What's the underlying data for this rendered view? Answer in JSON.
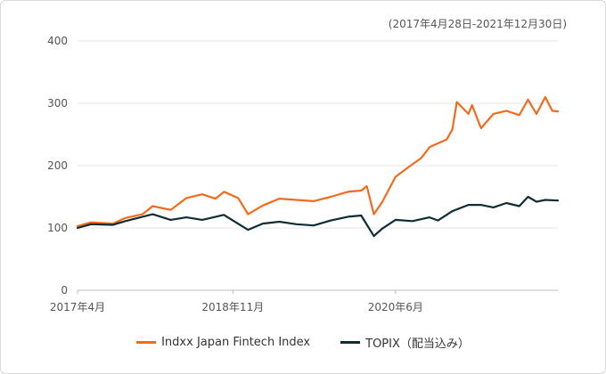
{
  "note": "(2017年4月28日-2021年12月30日)",
  "chart_data": {
    "type": "line",
    "title": "",
    "xlabel": "",
    "ylabel": "",
    "ylim": [
      0,
      400
    ],
    "yticks": [
      0,
      100,
      200,
      300,
      400
    ],
    "xlim": [
      "2017-04-28",
      "2021-12-30"
    ],
    "xticks": [
      {
        "date": "2017-04-28",
        "label": "2017年4月"
      },
      {
        "date": "2018-11-01",
        "label": "2018年11月"
      },
      {
        "date": "2020-06-01",
        "label": "2020年6月"
      }
    ],
    "grid": true,
    "legend": "bottom",
    "series": [
      {
        "name": "Indxx Japan Fintech Index",
        "color": "#f26b1d",
        "x": [
          "2017-04-28",
          "2017-06-15",
          "2017-09-01",
          "2017-10-15",
          "2017-12-15",
          "2018-01-20",
          "2018-03-25",
          "2018-05-20",
          "2018-07-15",
          "2018-08-31",
          "2018-10-01",
          "2018-11-20",
          "2018-12-25",
          "2019-02-15",
          "2019-04-15",
          "2019-06-15",
          "2019-08-15",
          "2019-10-15",
          "2019-12-15",
          "2020-01-31",
          "2020-02-20",
          "2020-03-16",
          "2020-04-15",
          "2020-06-01",
          "2020-07-15",
          "2020-08-31",
          "2020-10-01",
          "2020-11-30",
          "2020-12-20",
          "2021-01-05",
          "2021-02-15",
          "2021-02-28",
          "2021-04-01",
          "2021-05-15",
          "2021-06-30",
          "2021-08-15",
          "2021-09-15",
          "2021-10-15",
          "2021-11-15",
          "2021-12-10",
          "2021-12-30"
        ],
        "values": [
          103,
          109,
          107,
          116,
          122,
          135,
          129,
          148,
          154,
          147,
          158,
          148,
          122,
          136,
          147,
          145,
          143,
          150,
          158,
          160,
          167,
          122,
          142,
          182,
          197,
          212,
          230,
          242,
          258,
          302,
          283,
          297,
          260,
          283,
          288,
          281,
          306,
          283,
          310,
          288,
          287
        ]
      },
      {
        "name": "TOPIX（配当込み）",
        "color": "#0f2d33",
        "x": [
          "2017-04-28",
          "2017-06-15",
          "2017-09-01",
          "2017-10-15",
          "2017-12-15",
          "2018-01-20",
          "2018-03-25",
          "2018-05-20",
          "2018-07-15",
          "2018-09-30",
          "2018-12-25",
          "2019-02-15",
          "2019-04-15",
          "2019-06-15",
          "2019-08-15",
          "2019-10-15",
          "2019-12-15",
          "2020-01-31",
          "2020-03-16",
          "2020-04-15",
          "2020-06-01",
          "2020-07-31",
          "2020-09-30",
          "2020-10-30",
          "2020-12-20",
          "2021-02-15",
          "2021-03-31",
          "2021-05-15",
          "2021-06-30",
          "2021-08-15",
          "2021-09-15",
          "2021-10-15",
          "2021-11-15",
          "2021-12-30"
        ],
        "values": [
          100,
          106,
          105,
          111,
          118,
          122,
          113,
          117,
          113,
          121,
          97,
          107,
          110,
          106,
          104,
          112,
          118,
          120,
          87,
          99,
          113,
          111,
          117,
          112,
          127,
          137,
          137,
          133,
          140,
          135,
          150,
          142,
          145,
          144
        ]
      }
    ]
  }
}
